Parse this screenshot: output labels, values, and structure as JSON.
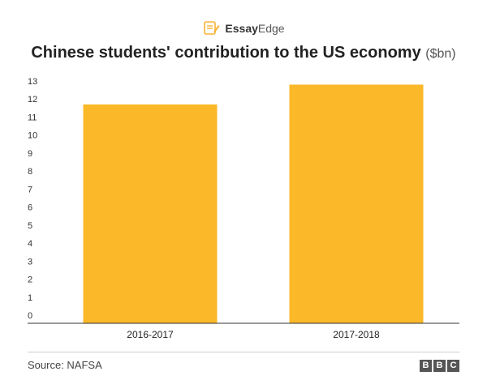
{
  "logo": {
    "icon": "document-pencil-icon",
    "brand_main": "Essay",
    "brand_accent": "Edge"
  },
  "header": {
    "title_main": "Chinese students' contribution to the US economy",
    "title_unit": "($bn)"
  },
  "footer": {
    "source": "Source: NAFSA",
    "brand_letters": [
      "B",
      "B",
      "C"
    ]
  },
  "colors": {
    "bar": "#fbb829",
    "axis": "#333333",
    "logo_accent": "#f5b335"
  },
  "chart_data": {
    "type": "bar",
    "categories": [
      "2016-2017",
      "2017-2018"
    ],
    "values": [
      11.7,
      12.8
    ],
    "title": "Chinese students' contribution to the US economy ($bn)",
    "xlabel": "",
    "ylabel": "",
    "ylim": [
      0,
      13
    ],
    "yticks": [
      0,
      1,
      2,
      3,
      4,
      5,
      6,
      7,
      8,
      9,
      10,
      11,
      12,
      13
    ],
    "grid": false,
    "legend": "none"
  }
}
